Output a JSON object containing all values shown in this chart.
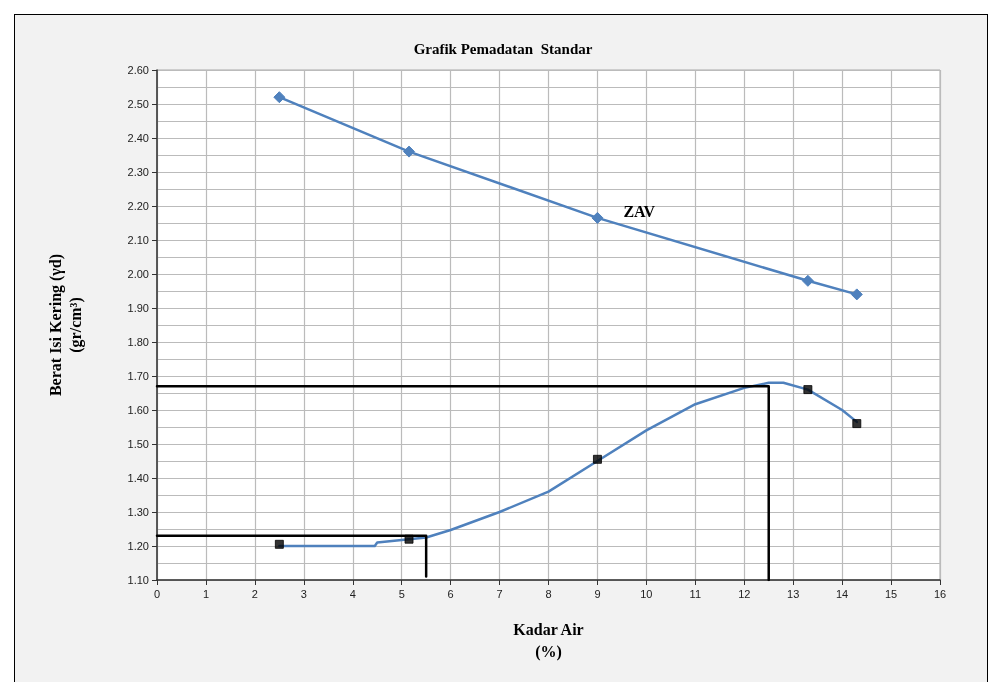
{
  "chart_data": {
    "type": "line",
    "title": "Grafik Pemadatan  Standar",
    "xlabel": "Kadar Air\n(%)",
    "ylabel": "Berat Isi Kering (γd)\n(gr/cm³)",
    "xlim": [
      0,
      16
    ],
    "xticks": [
      0,
      1,
      2,
      3,
      4,
      5,
      6,
      7,
      8,
      9,
      10,
      11,
      12,
      13,
      14,
      15,
      16
    ],
    "ylim": [
      1.1,
      2.6
    ],
    "yticks": [
      {
        "value": 1.1,
        "label": "1.10"
      },
      {
        "value": 1.2,
        "label": "1.20"
      },
      {
        "value": 1.3,
        "label": "1.30"
      },
      {
        "value": 1.4,
        "label": "1.40"
      },
      {
        "value": 1.5,
        "label": "1.50"
      },
      {
        "value": 1.6,
        "label": "1.60"
      },
      {
        "value": 1.7,
        "label": "1.70"
      },
      {
        "value": 1.8,
        "label": "1.80"
      },
      {
        "value": 1.9,
        "label": "1.90"
      },
      {
        "value": 2.0,
        "label": "2.00"
      },
      {
        "value": 2.1,
        "label": "2.10"
      },
      {
        "value": 2.2,
        "label": "2.20"
      },
      {
        "value": 2.3,
        "label": "2.30"
      },
      {
        "value": 2.4,
        "label": "2.40"
      },
      {
        "value": 2.5,
        "label": "2.50"
      },
      {
        "value": 2.6,
        "label": "2.60"
      }
    ],
    "grid": true,
    "series": [
      {
        "name": "ZAV",
        "color": "#4f81bd",
        "marker": "diamond",
        "x": [
          2.5,
          5.15,
          9.0,
          13.3,
          14.3
        ],
        "values": [
          2.52,
          2.36,
          2.165,
          1.98,
          1.94
        ]
      },
      {
        "color": "#4f81bd",
        "marker": "none",
        "x": [
          2.5,
          4.45,
          4.5,
          5.5,
          6,
          7,
          8,
          9,
          10,
          11,
          12,
          12.5,
          12.8,
          13.3,
          14,
          14.3
        ],
        "values": [
          1.2,
          1.2,
          1.21,
          1.225,
          1.247,
          1.3,
          1.36,
          1.45,
          1.54,
          1.617,
          1.665,
          1.68,
          1.68,
          1.66,
          1.6,
          1.565
        ]
      },
      {
        "type": "scatter",
        "color": "#000000",
        "marker": "square",
        "x": [
          2.5,
          5.15,
          9.0,
          13.3,
          14.3
        ],
        "values": [
          1.205,
          1.22,
          1.455,
          1.66,
          1.56
        ]
      },
      {
        "color": "#000000",
        "marker": "none",
        "x": [
          0,
          12.5,
          12.5
        ],
        "values": [
          1.67,
          1.67,
          1.1
        ]
      },
      {
        "color": "#000000",
        "marker": "none",
        "x": [
          0,
          5.5,
          5.5
        ],
        "values": [
          1.23,
          1.23,
          1.11
        ]
      }
    ]
  }
}
